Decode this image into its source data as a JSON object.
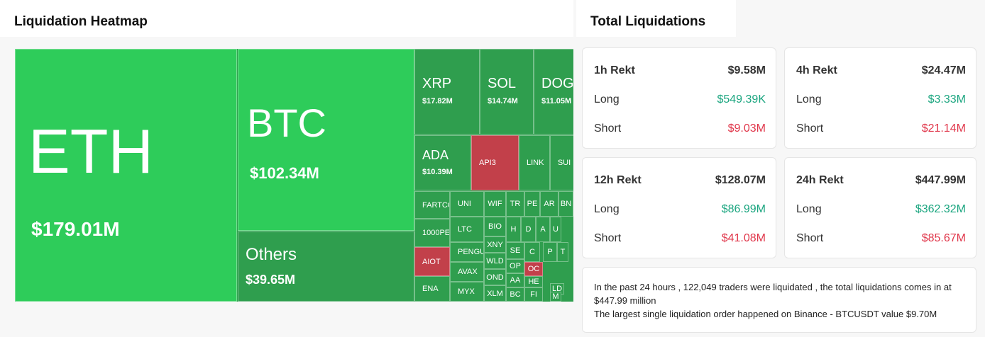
{
  "heatmap": {
    "title": "Liquidation Heatmap",
    "tiles": [
      {
        "label": "ETH",
        "value": "$179.01M"
      },
      {
        "label": "BTC",
        "value": "$102.34M"
      },
      {
        "label": "Others",
        "value": "$39.65M"
      },
      {
        "label": "XRP",
        "value": "$17.82M"
      },
      {
        "label": "SOL",
        "value": "$14.74M"
      },
      {
        "label": "DOG",
        "value": "$11.05M"
      },
      {
        "label": "ADA",
        "value": "$10.39M"
      },
      {
        "label": "API3"
      },
      {
        "label": "LINK"
      },
      {
        "label": "SUI"
      },
      {
        "label": "FARTCO"
      },
      {
        "label": "1000PE"
      },
      {
        "label": "AIOT"
      },
      {
        "label": "ENA"
      },
      {
        "label": "UNI"
      },
      {
        "label": "LTC"
      },
      {
        "label": "PENGU"
      },
      {
        "label": "AVAX"
      },
      {
        "label": "MYX"
      },
      {
        "label": "WIF"
      },
      {
        "label": "BIO"
      },
      {
        "label": "XNY"
      },
      {
        "label": "WLD"
      },
      {
        "label": "OND"
      },
      {
        "label": "XLM"
      },
      {
        "label": "TR"
      },
      {
        "label": "H"
      },
      {
        "label": "SE"
      },
      {
        "label": "OP"
      },
      {
        "label": "AA"
      },
      {
        "label": "BC"
      },
      {
        "label": "PE"
      },
      {
        "label": "D"
      },
      {
        "label": "C"
      },
      {
        "label": "OC"
      },
      {
        "label": "HE"
      },
      {
        "label": "FI"
      },
      {
        "label": "AR"
      },
      {
        "label": "BN"
      },
      {
        "label": "A"
      },
      {
        "label": "U"
      },
      {
        "label": "P"
      },
      {
        "label": "T"
      },
      {
        "label": "LD"
      },
      {
        "label": "M"
      }
    ]
  },
  "totals": {
    "title": "Total Liquidations",
    "cards": [
      {
        "period": "1h Rekt",
        "total": "$9.58M",
        "long_label": "Long",
        "long": "$549.39K",
        "short_label": "Short",
        "short": "$9.03M"
      },
      {
        "period": "4h Rekt",
        "total": "$24.47M",
        "long_label": "Long",
        "long": "$3.33M",
        "short_label": "Short",
        "short": "$21.14M"
      },
      {
        "period": "12h Rekt",
        "total": "$128.07M",
        "long_label": "Long",
        "long": "$86.99M",
        "short_label": "Short",
        "short": "$41.08M"
      },
      {
        "period": "24h Rekt",
        "total": "$447.99M",
        "long_label": "Long",
        "long": "$362.32M",
        "short_label": "Short",
        "short": "$85.67M"
      }
    ],
    "summary": [
      "In the past 24 hours , 122,049 traders were liquidated , the total liquidations comes in at $447.99 million",
      "The largest single liquidation order happened on Binance - BTCUSDT value $9.70M"
    ]
  }
}
